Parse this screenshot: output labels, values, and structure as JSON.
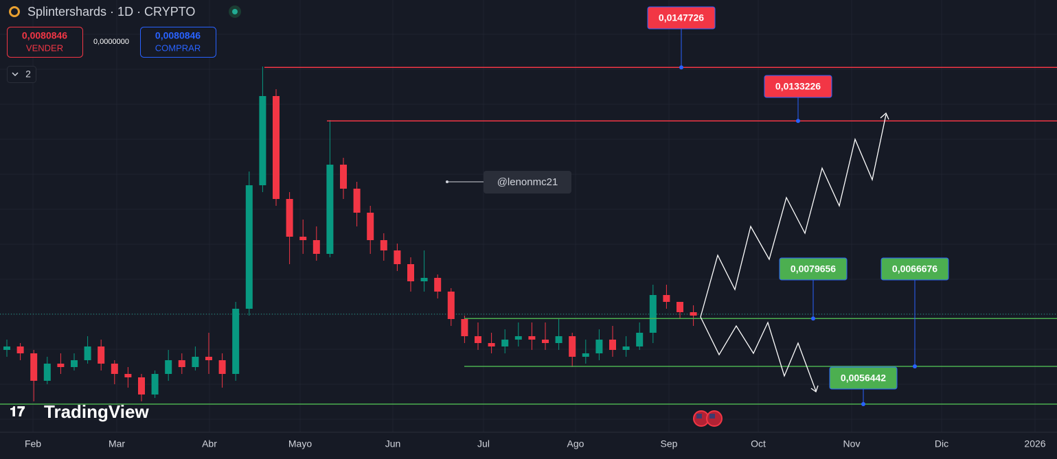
{
  "header": {
    "title": "Splintershards · 1D · CRYPTO",
    "sell_price": "0,0080846",
    "sell": "VENDER",
    "spread": "0,0000000",
    "buy_price": "0,0080846",
    "buy": "COMPRAR",
    "drawings_count": "2",
    "logo": "TradingView",
    "note": "@lenonmc21"
  },
  "chart_data": {
    "type": "candlestick",
    "ylim": [
      0.004882,
      0.0166
    ],
    "x_axis_labels": [
      "Feb",
      "Mar",
      "Abr",
      "Mayo",
      "Jun",
      "Jul",
      "Ago",
      "Sep",
      "Oct",
      "Nov",
      "Dic",
      "2026"
    ],
    "up_color": "#089981",
    "down_color": "#f23645",
    "last_price": 0.0080846,
    "open": [
      0.007114,
      0.007207,
      0.007021,
      0.006277,
      0.006742,
      0.006649,
      0.006835,
      0.007207,
      0.006742,
      0.006463,
      0.00637,
      0.005905,
      0.006463,
      0.006835,
      0.006649,
      0.006928,
      0.006835,
      0.006463,
      0.00823,
      0.011578,
      0.013996,
      0.011206,
      0.010183,
      0.01009,
      0.009718,
      0.012136,
      0.011485,
      0.010834,
      0.01009,
      0.009811,
      0.009439,
      0.008974,
      0.009067,
      0.008695,
      0.007951,
      0.007486,
      0.0073,
      0.007207,
      0.007393,
      0.007486,
      0.007393,
      0.0073,
      0.007486,
      0.006928,
      0.007021,
      0.007393,
      0.007114,
      0.007207,
      0.007579,
      0.008602,
      0.008416,
      0.008137
    ],
    "high": [
      0.007393,
      0.0073,
      0.007114,
      0.006928,
      0.007021,
      0.007021,
      0.007486,
      0.007393,
      0.006835,
      0.006649,
      0.006463,
      0.006556,
      0.007114,
      0.007021,
      0.007207,
      0.007579,
      0.007021,
      0.008416,
      0.01195,
      0.014796,
      0.014182,
      0.011392,
      0.010648,
      0.010462,
      0.013345,
      0.012322,
      0.011671,
      0.01102,
      0.010276,
      0.009997,
      0.009625,
      0.009811,
      0.00916,
      0.008788,
      0.008044,
      0.007858,
      0.007579,
      0.007672,
      0.007858,
      0.007858,
      0.007858,
      0.007951,
      0.007579,
      0.007393,
      0.007672,
      0.007765,
      0.007486,
      0.007858,
      0.008881,
      0.008881,
      0.008416,
      0.008323
    ],
    "low": [
      0.006928,
      0.006835,
      0.005719,
      0.006184,
      0.006463,
      0.006556,
      0.006742,
      0.006556,
      0.006184,
      0.006091,
      0.005719,
      0.005812,
      0.006277,
      0.006463,
      0.006556,
      0.006463,
      0.006091,
      0.006277,
      0.008044,
      0.011392,
      0.01102,
      0.009439,
      0.009718,
      0.009532,
      0.009625,
      0.011206,
      0.010462,
      0.009718,
      0.009532,
      0.009253,
      0.008695,
      0.008695,
      0.008509,
      0.007765,
      0.0073,
      0.007114,
      0.007021,
      0.007021,
      0.007207,
      0.007114,
      0.007114,
      0.007114,
      0.006649,
      0.006742,
      0.006835,
      0.006928,
      0.006928,
      0.007114,
      0.0073,
      0.00823,
      0.007951,
      0.007765
    ],
    "close": [
      0.007207,
      0.007021,
      0.006277,
      0.006742,
      0.006649,
      0.006835,
      0.007207,
      0.006742,
      0.006463,
      0.00637,
      0.005905,
      0.006463,
      0.006835,
      0.006649,
      0.006928,
      0.006835,
      0.006463,
      0.00823,
      0.011578,
      0.013996,
      0.011206,
      0.010183,
      0.01009,
      0.009718,
      0.012136,
      0.011485,
      0.010834,
      0.01009,
      0.009811,
      0.009439,
      0.008974,
      0.009067,
      0.008695,
      0.007951,
      0.007486,
      0.0073,
      0.007207,
      0.007393,
      0.007486,
      0.007393,
      0.0073,
      0.007486,
      0.006928,
      0.007021,
      0.007393,
      0.007114,
      0.007207,
      0.007579,
      0.008602,
      0.008416,
      0.008137,
      0.008044
    ],
    "levels": {
      "values": [
        0.0147726,
        0.0133226,
        0.0079656,
        0.0066676,
        0.0056442
      ],
      "value_labels": [
        "0,0147726",
        "0,0133226",
        "0,0079656",
        "0,0066676",
        "0,0056442"
      ],
      "colors": [
        "#f23645",
        "#f23645",
        "#4caf50",
        "#4caf50",
        "#4caf50"
      ]
    }
  }
}
